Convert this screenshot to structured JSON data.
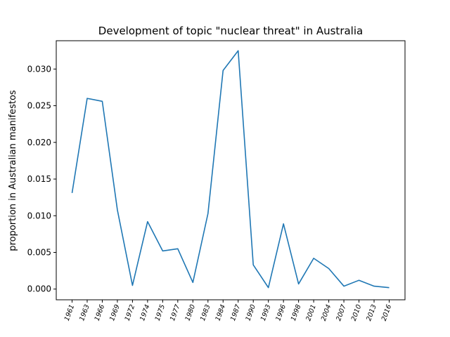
{
  "chart_data": {
    "type": "line",
    "title": "Development of topic \"nuclear threat\" in Australia",
    "xlabel": "",
    "ylabel": "proportion in Australian manifestos",
    "categories": [
      "1961",
      "1963",
      "1966",
      "1969",
      "1972",
      "1974",
      "1975",
      "1977",
      "1980",
      "1983",
      "1984",
      "1987",
      "1990",
      "1993",
      "1996",
      "1998",
      "2001",
      "2004",
      "2007",
      "2010",
      "2013",
      "2016"
    ],
    "series": [
      {
        "values": [
          0.0131,
          0.026,
          0.0256,
          0.0108,
          0.0005,
          0.0092,
          0.0052,
          0.0055,
          0.0009,
          0.0103,
          0.0298,
          0.0325,
          0.0033,
          0.0002,
          0.0089,
          0.0007,
          0.0042,
          0.0028,
          0.0004,
          0.0012,
          0.0004,
          0.0002
        ],
        "color": "#1f77b4"
      }
    ],
    "yticks": [
      0.0,
      0.005,
      0.01,
      0.015,
      0.02,
      0.025,
      0.03
    ],
    "ytick_labels": [
      "0.000",
      "0.005",
      "0.010",
      "0.015",
      "0.020",
      "0.025",
      "0.030"
    ],
    "ylim": [
      -0.00146,
      0.03386
    ],
    "grid": false,
    "legend": "none"
  }
}
